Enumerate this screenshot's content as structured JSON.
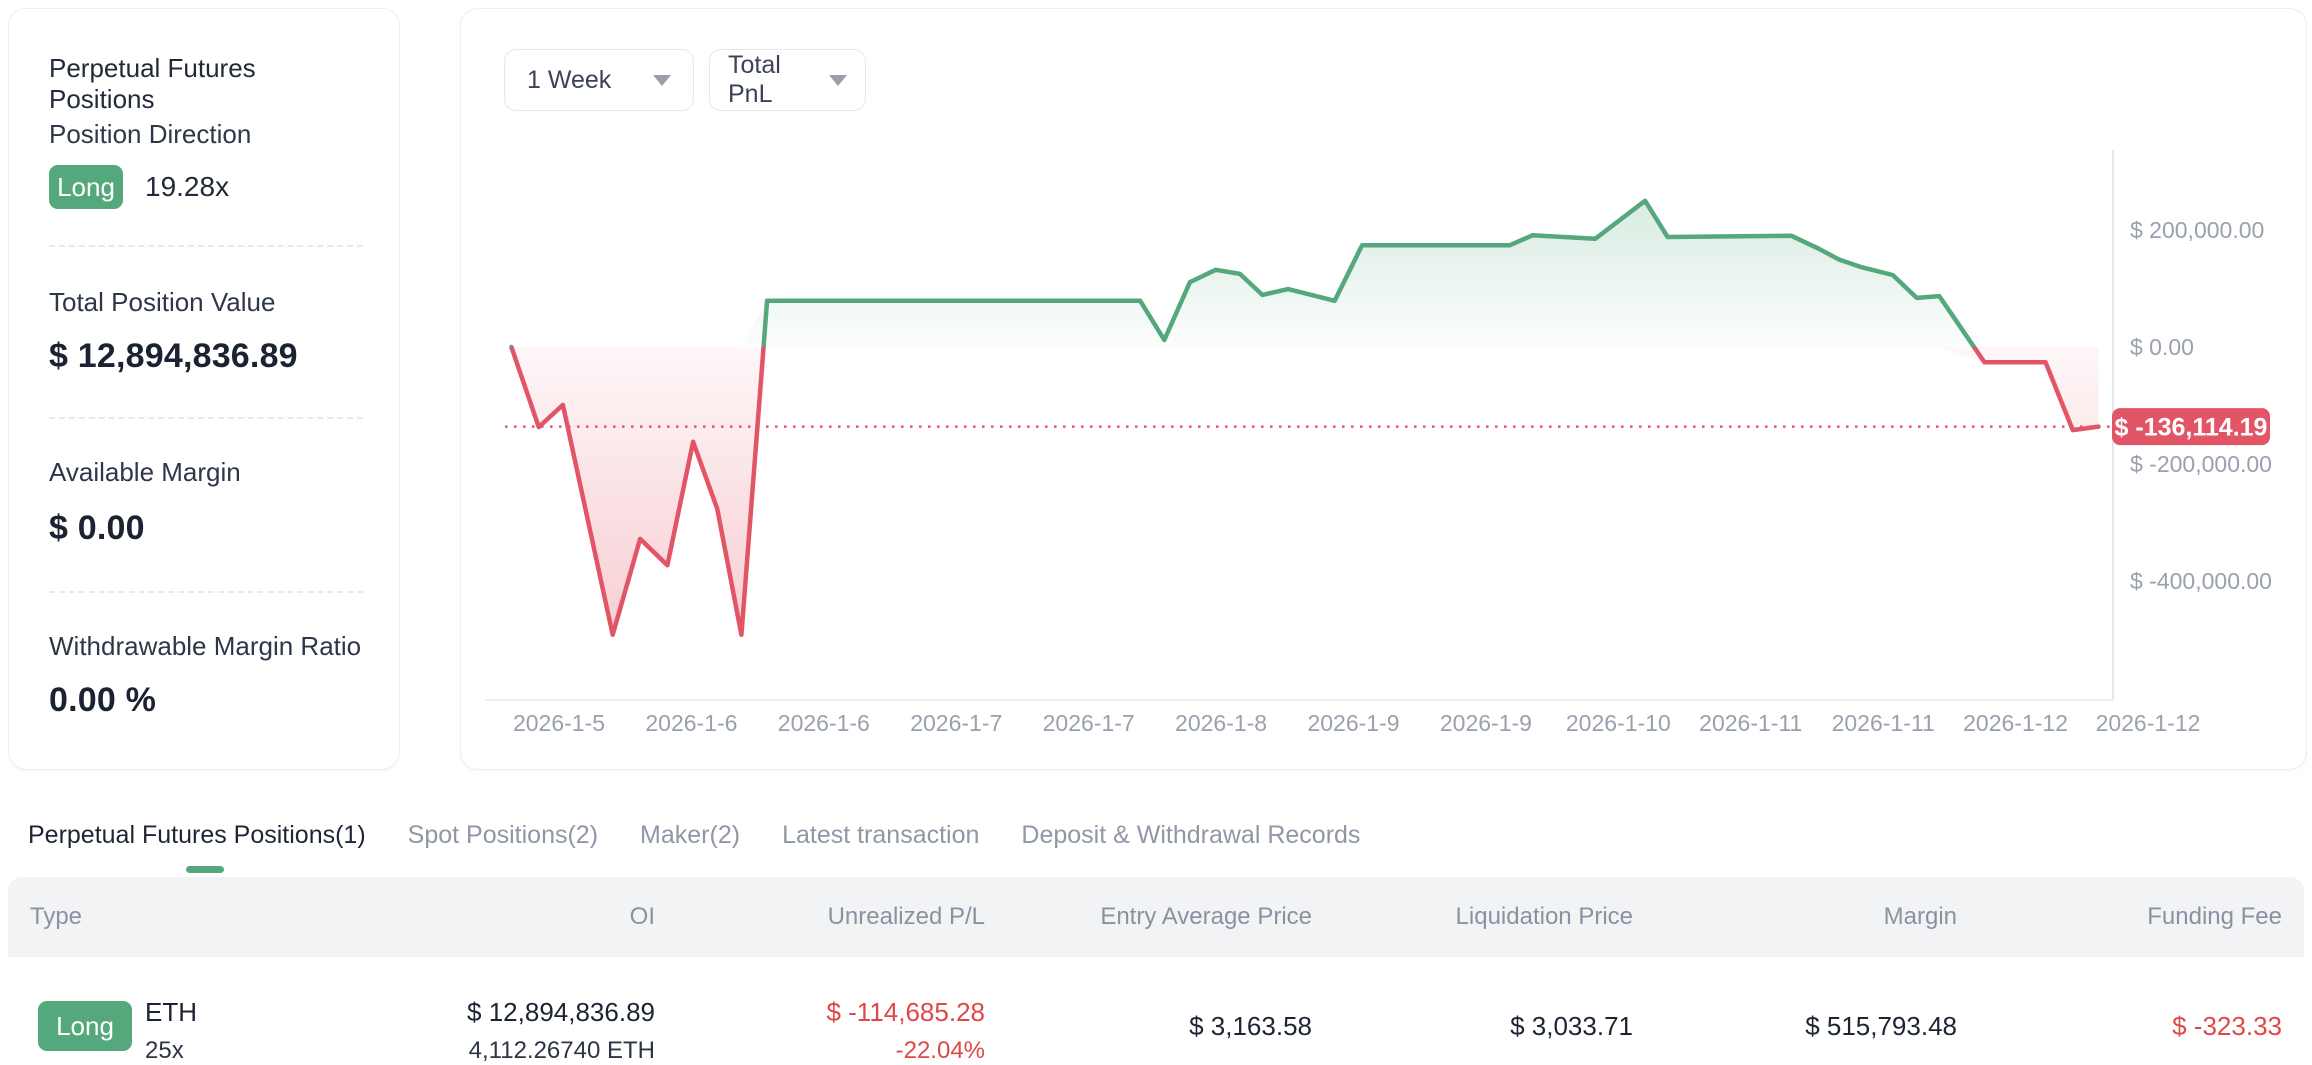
{
  "sidebar": {
    "title": "Perpetual Futures Positions",
    "position_direction": {
      "label": "Position Direction",
      "badge": "Long",
      "leverage": "19.28x"
    },
    "stats": [
      {
        "label": "Total Position Value",
        "value": "$ 12,894,836.89"
      },
      {
        "label": "Available Margin",
        "value": "$ 0.00"
      },
      {
        "label": "Withdrawable Margin Ratio",
        "value": "0.00 %"
      }
    ]
  },
  "chart_controls": {
    "range": "1 Week",
    "metric": "Total PnL"
  },
  "chart_data": {
    "type": "area",
    "title": "Total PnL (1 Week)",
    "series": [
      {
        "name": "Total PnL",
        "points_note": "each point = [x percent across plot, PnL in USD]",
        "points": [
          [
            0.4,
            0
          ],
          [
            2.1,
            -137000
          ],
          [
            3.6,
            -99000
          ],
          [
            6.7,
            -492000
          ],
          [
            8.4,
            -328000
          ],
          [
            10.1,
            -373000
          ],
          [
            11.7,
            -162000
          ],
          [
            13.2,
            -277000
          ],
          [
            14.7,
            -492000
          ],
          [
            16.3,
            79000
          ],
          [
            39.5,
            79000
          ],
          [
            41.0,
            12000
          ],
          [
            42.6,
            111000
          ],
          [
            44.2,
            132000
          ],
          [
            45.7,
            125000
          ],
          [
            47.1,
            89000
          ],
          [
            48.7,
            99000
          ],
          [
            51.6,
            79000
          ],
          [
            53.3,
            174000
          ],
          [
            62.5,
            174000
          ],
          [
            63.9,
            191000
          ],
          [
            67.8,
            185000
          ],
          [
            70.9,
            250000
          ],
          [
            72.3,
            188000
          ],
          [
            80.0,
            190000
          ],
          [
            81.7,
            168000
          ],
          [
            83.0,
            149000
          ],
          [
            84.3,
            137000
          ],
          [
            86.3,
            123000
          ],
          [
            87.8,
            84000
          ],
          [
            89.2,
            87000
          ],
          [
            92.0,
            -26000
          ],
          [
            95.8,
            -26000
          ],
          [
            97.5,
            -142000
          ],
          [
            99.1,
            -136114.19
          ]
        ]
      }
    ],
    "x_axis_labels": [
      "2026-1-5",
      "2026-1-6",
      "2026-1-6",
      "2026-1-7",
      "2026-1-7",
      "2026-1-8",
      "2026-1-9",
      "2026-1-9",
      "2026-1-10",
      "2026-1-11",
      "2026-1-11",
      "2026-1-12",
      "2026-1-12"
    ],
    "y_ticks": [
      {
        "label": "$ 200,000.00",
        "value": 200000
      },
      {
        "label": "$ 0.00",
        "value": 0
      },
      {
        "label": "$ -200,000.00",
        "value": -200000
      },
      {
        "label": "$ -400,000.00",
        "value": -400000
      }
    ],
    "ylim": [
      -605000,
      337000
    ],
    "current_value": -136114.19,
    "current_value_label": "$ -136,114.19",
    "grid": "off",
    "legend": "none",
    "colors": {
      "positive": "#55a87c",
      "negative": "#e25566"
    }
  },
  "tabs": [
    {
      "label": "Perpetual Futures Positions(1)",
      "active": true
    },
    {
      "label": "Spot Positions(2)",
      "active": false
    },
    {
      "label": "Maker(2)",
      "active": false
    },
    {
      "label": "Latest transaction",
      "active": false
    },
    {
      "label": "Deposit & Withdrawal Records",
      "active": false
    }
  ],
  "table": {
    "columns": [
      "Type",
      "OI",
      "Unrealized P/L",
      "Entry Average Price",
      "Liquidation Price",
      "Margin",
      "Funding Fee"
    ],
    "rows": [
      {
        "direction": "Long",
        "symbol": "ETH",
        "leverage": "25x",
        "oi_value": "$ 12,894,836.89",
        "oi_amount": "4,112.26740 ETH",
        "unrealized_pl": "$ -114,685.28",
        "unrealized_pl_pct": "-22.04%",
        "entry_average_price": "$ 3,163.58",
        "liquidation_price": "$ 3,033.71",
        "margin": "$ 515,793.48",
        "funding_fee": "$ -323.33"
      }
    ]
  },
  "colors": {
    "green": "#55a87c",
    "rose": "#e25566",
    "table_red": "#df4848",
    "dark_text": "#1c2433",
    "grey_text": "#8f97a6",
    "axis_text": "#99a0ae"
  }
}
